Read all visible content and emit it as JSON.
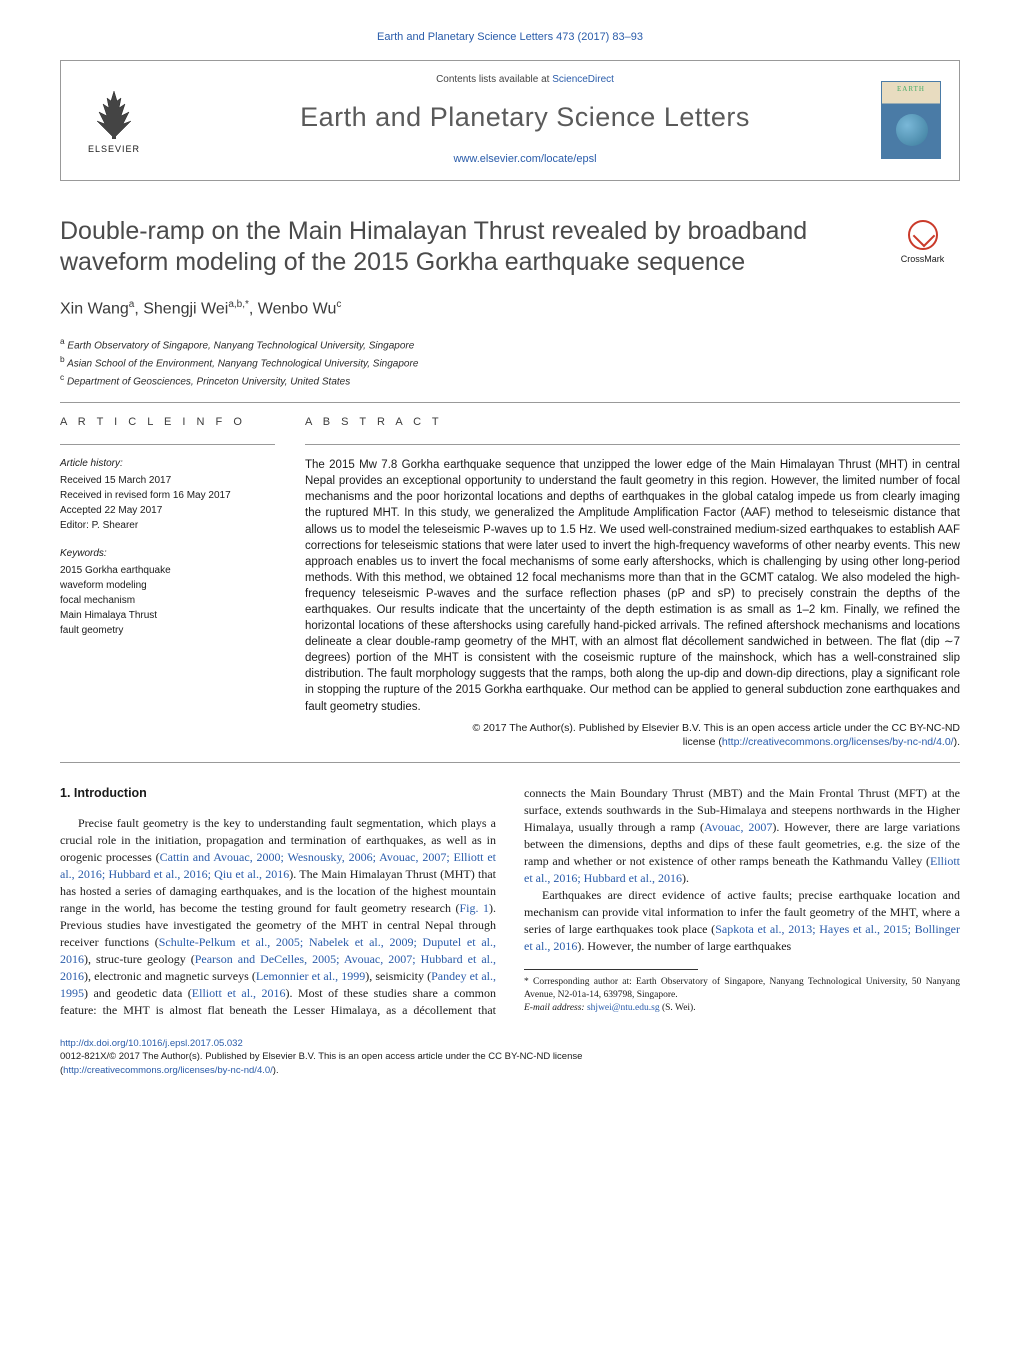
{
  "colors": {
    "link": "#2a5caa",
    "heading_gray": "#4a4a4a",
    "text": "#1a1a1a",
    "border": "#999999",
    "crossmark": "#ca3a2a",
    "cover_top": "#e8dcc0",
    "cover_bottom": "#4a7ba6"
  },
  "header": {
    "citation": "Earth and Planetary Science Letters 473 (2017) 83–93",
    "contents_prefix": "Contents lists available at ",
    "contents_link": "ScienceDirect",
    "journal_name": "Earth and Planetary Science Letters",
    "journal_url": "www.elsevier.com/locate/epsl",
    "publisher_name": "ELSEVIER",
    "cover_word": "EARTH"
  },
  "article": {
    "title": "Double-ramp on the Main Himalayan Thrust revealed by broadband waveform modeling of the 2015 Gorkha earthquake sequence",
    "crossmark": "CrossMark",
    "authors_html": "Xin Wang<sup>a</sup>, Shengji Wei<sup>a,b,*</sup>, Wenbo Wu<sup>c</sup>",
    "affiliations": [
      {
        "sup": "a",
        "text": "Earth Observatory of Singapore, Nanyang Technological University, Singapore"
      },
      {
        "sup": "b",
        "text": "Asian School of the Environment, Nanyang Technological University, Singapore"
      },
      {
        "sup": "c",
        "text": "Department of Geosciences, Princeton University, United States"
      }
    ]
  },
  "info": {
    "heading": "A R T I C L E   I N F O",
    "history_label": "Article history:",
    "history": [
      "Received 15 March 2017",
      "Received in revised form 16 May 2017",
      "Accepted 22 May 2017",
      "Editor: P. Shearer"
    ],
    "keywords_label": "Keywords:",
    "keywords": [
      "2015 Gorkha earthquake",
      "waveform modeling",
      "focal mechanism",
      "Main Himalaya Thrust",
      "fault geometry"
    ]
  },
  "abstract": {
    "heading": "A B S T R A C T",
    "body": "The 2015 Mw 7.8 Gorkha earthquake sequence that unzipped the lower edge of the Main Himalayan Thrust (MHT) in central Nepal provides an exceptional opportunity to understand the fault geometry in this region. However, the limited number of focal mechanisms and the poor horizontal locations and depths of earthquakes in the global catalog impede us from clearly imaging the ruptured MHT. In this study, we generalized the Amplitude Amplification Factor (AAF) method to teleseismic distance that allows us to model the teleseismic P-waves up to 1.5 Hz. We used well-constrained medium-sized earthquakes to establish AAF corrections for teleseismic stations that were later used to invert the high-frequency waveforms of other nearby events. This new approach enables us to invert the focal mechanisms of some early aftershocks, which is challenging by using other long-period methods. With this method, we obtained 12 focal mechanisms more than that in the GCMT catalog. We also modeled the high-frequency teleseismic P-waves and the surface reflection phases (pP and sP) to precisely constrain the depths of the earthquakes. Our results indicate that the uncertainty of the depth estimation is as small as 1–2 km. Finally, we refined the horizontal locations of these aftershocks using carefully hand-picked arrivals. The refined aftershock mechanisms and locations delineate a clear double-ramp geometry of the MHT, with an almost flat décollement sandwiched in between. The flat (dip ∼7 degrees) portion of the MHT is consistent with the coseismic rupture of the mainshock, which has a well-constrained slip distribution. The fault morphology suggests that the ramps, both along the up-dip and down-dip directions, play a significant role in stopping the rupture of the 2015 Gorkha earthquake. Our method can be applied to general subduction zone earthquakes and fault geometry studies.",
    "copyright_line1": "© 2017 The Author(s). Published by Elsevier B.V. This is an open access article under the CC BY-NC-ND",
    "copyright_line2_prefix": "license (",
    "copyright_url": "http://creativecommons.org/licenses/by-nc-nd/4.0/",
    "copyright_line2_suffix": ")."
  },
  "body": {
    "section_number": "1.",
    "section_title": "Introduction",
    "p1_a": "Precise fault geometry is the key to understanding fault segmentation, which plays a crucial role in the initiation, propagation and termination of earthquakes, as well as in orogenic processes (",
    "p1_ref1": "Cattin and Avouac, 2000; Wesnousky, 2006; Avouac, 2007; Elliott et al., 2016; Hubbard et al., 2016; Qiu et al., 2016",
    "p1_b": "). The Main Himalayan Thrust (MHT) that has hosted a series of damaging earthquakes, and is the location of the highest mountain range in the world, has become the testing ground for fault geometry research (",
    "p1_ref2": "Fig. 1",
    "p1_c": "). Previous studies have investigated the geometry of the MHT in central Nepal through receiver functions (",
    "p1_ref3": "Schulte-Pelkum et al., 2005; Nabelek et al., 2009; Duputel et al., 2016",
    "p1_d": "), struc-",
    "p2_a": "ture geology (",
    "p2_ref1": "Pearson and DeCelles, 2005; Avouac, 2007; Hubbard et al., 2016",
    "p2_b": "), electronic and magnetic surveys (",
    "p2_ref2": "Lemonnier et al., 1999",
    "p2_c": "), seismicity (",
    "p2_ref3": "Pandey et al., 1995",
    "p2_d": ") and geodetic data (",
    "p2_ref4": "Elliott et al., 2016",
    "p2_e": "). Most of these studies share a common feature: the MHT is almost flat beneath the Lesser Himalaya, as a décollement that connects the Main Boundary Thrust (MBT) and the Main Frontal Thrust (MFT) at the surface, extends southwards in the Sub-Himalaya and steepens northwards in the Higher Himalaya, usually through a ramp (",
    "p2_ref5": "Avouac, 2007",
    "p2_f": "). However, there are large variations between the dimensions, depths and dips of these fault geometries, e.g. the size of the ramp and whether or not existence of other ramps beneath the Kathmandu Valley (",
    "p2_ref6": "Elliott et al., 2016; Hubbard et al., 2016",
    "p2_g": ").",
    "p3_a": "Earthquakes are direct evidence of active faults; precise earthquake location and mechanism can provide vital information to infer the fault geometry of the MHT, where a series of large earthquakes took place (",
    "p3_ref1": "Sapkota et al., 2013; Hayes et al., 2015; Bollinger et al., 2016",
    "p3_b": "). However, the number of large earthquakes"
  },
  "footnote": {
    "corr": "* Corresponding author at: Earth Observatory of Singapore, Nanyang Technological University, 50 Nanyang Avenue, N2-01a-14, 639798, Singapore.",
    "email_label": "E-mail address:",
    "email": "shjwei@ntu.edu.sg",
    "email_name": "(S. Wei)."
  },
  "footer": {
    "doi": "http://dx.doi.org/10.1016/j.epsl.2017.05.032",
    "issn_line": "0012-821X/© 2017 The Author(s). Published by Elsevier B.V. This is an open access article under the CC BY-NC-ND license",
    "license_open": "(",
    "license_url": "http://creativecommons.org/licenses/by-nc-nd/4.0/",
    "license_close": ")."
  }
}
